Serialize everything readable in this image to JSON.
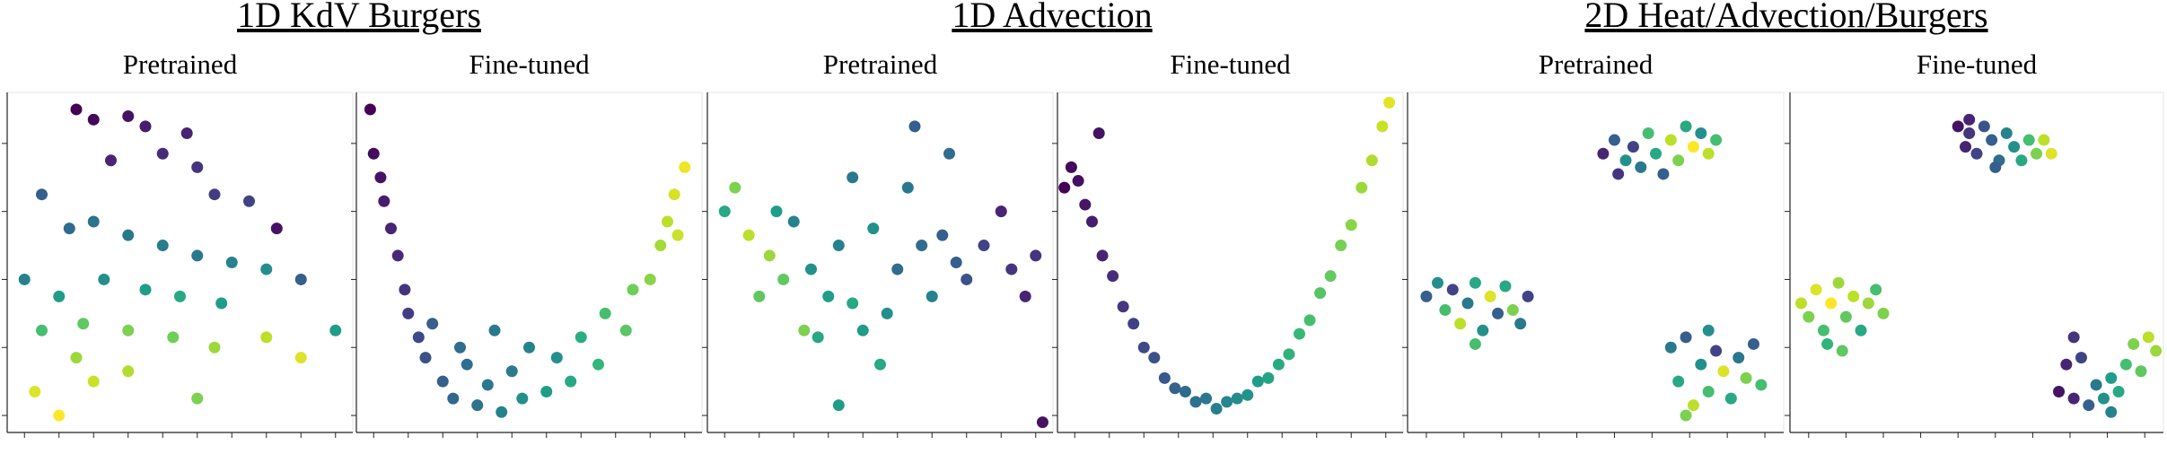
{
  "groups": [
    {
      "title": "1D KdV Burgers"
    },
    {
      "title": "1D Advection"
    },
    {
      "title": "2D Heat/Advection/Burgers"
    }
  ],
  "colormap": "viridis",
  "chart_data": [
    {
      "type": "scatter",
      "title": "Pretrained",
      "x": [
        20,
        25,
        35,
        40,
        30,
        45,
        52,
        55,
        60,
        70,
        78,
        10,
        18,
        25,
        35,
        45,
        55,
        65,
        75,
        85,
        5,
        15,
        28,
        40,
        50,
        62,
        95,
        10,
        22,
        35,
        48,
        60,
        75,
        8,
        15,
        25,
        35,
        55,
        85,
        20
      ],
      "values": [
        95,
        92,
        93,
        90,
        80,
        82,
        88,
        78,
        70,
        68,
        60,
        70,
        60,
        62,
        58,
        55,
        52,
        50,
        48,
        45,
        45,
        40,
        45,
        42,
        40,
        38,
        30,
        30,
        32,
        30,
        28,
        25,
        28,
        12,
        5,
        15,
        18,
        10,
        22,
        22
      ],
      "color_values": [
        0.0,
        0.02,
        0.05,
        0.08,
        0.1,
        0.12,
        0.1,
        0.15,
        0.18,
        0.2,
        0.05,
        0.3,
        0.35,
        0.38,
        0.4,
        0.42,
        0.4,
        0.45,
        0.5,
        0.3,
        0.45,
        0.55,
        0.5,
        0.55,
        0.6,
        0.55,
        0.55,
        0.7,
        0.75,
        0.8,
        0.78,
        0.85,
        0.9,
        0.95,
        1.0,
        0.92,
        0.88,
        0.8,
        0.95,
        0.85
      ],
      "xlim": [
        0,
        100
      ],
      "ylim": [
        0,
        100
      ],
      "xticks": [
        5,
        15,
        25,
        35,
        45,
        55,
        65,
        75,
        85,
        95
      ],
      "yticks": [
        5,
        25,
        45,
        65,
        85
      ]
    },
    {
      "type": "scatter",
      "title": "Fine-tuned",
      "x": [
        4,
        5,
        7,
        8,
        10,
        12,
        14,
        15,
        18,
        20,
        25,
        28,
        32,
        35,
        38,
        42,
        45,
        48,
        50,
        55,
        58,
        62,
        65,
        70,
        72,
        78,
        80,
        85,
        88,
        90,
        92,
        95,
        93,
        40,
        30,
        22
      ],
      "values": [
        95,
        82,
        75,
        68,
        60,
        52,
        42,
        35,
        28,
        22,
        15,
        10,
        20,
        8,
        14,
        6,
        18,
        10,
        25,
        12,
        22,
        15,
        28,
        20,
        35,
        30,
        42,
        45,
        55,
        62,
        70,
        78,
        58,
        30,
        25,
        32
      ],
      "color_values": [
        0,
        0.03,
        0.05,
        0.08,
        0.1,
        0.12,
        0.15,
        0.18,
        0.22,
        0.25,
        0.3,
        0.33,
        0.36,
        0.38,
        0.4,
        0.45,
        0.42,
        0.5,
        0.45,
        0.55,
        0.5,
        0.6,
        0.62,
        0.66,
        0.7,
        0.74,
        0.78,
        0.82,
        0.86,
        0.9,
        0.94,
        0.98,
        0.92,
        0.4,
        0.35,
        0.3
      ],
      "xlim": [
        0,
        100
      ],
      "ylim": [
        0,
        100
      ],
      "xticks": [
        5,
        15,
        25,
        35,
        45,
        55,
        65,
        75,
        85,
        95
      ],
      "yticks": [
        5,
        25,
        45,
        65,
        85
      ]
    },
    {
      "type": "scatter",
      "title": "Pretrained",
      "x": [
        5,
        8,
        12,
        18,
        22,
        25,
        30,
        35,
        38,
        42,
        45,
        48,
        50,
        38,
        55,
        58,
        60,
        62,
        65,
        68,
        70,
        72,
        75,
        80,
        85,
        88,
        92,
        95,
        97,
        28,
        15,
        32,
        42,
        52,
        20
      ],
      "values": [
        65,
        72,
        58,
        52,
        45,
        62,
        48,
        40,
        55,
        75,
        30,
        60,
        20,
        8,
        48,
        72,
        90,
        55,
        40,
        58,
        82,
        50,
        45,
        55,
        65,
        48,
        40,
        52,
        3,
        30,
        40,
        28,
        38,
        35,
        65
      ],
      "color_values": [
        0.6,
        0.8,
        0.9,
        0.85,
        0.75,
        0.45,
        0.5,
        0.55,
        0.45,
        0.4,
        0.55,
        0.5,
        0.6,
        0.55,
        0.35,
        0.4,
        0.3,
        0.35,
        0.45,
        0.3,
        0.35,
        0.3,
        0.25,
        0.2,
        0.1,
        0.15,
        0.1,
        0.15,
        0.05,
        0.8,
        0.75,
        0.6,
        0.6,
        0.5,
        0.55
      ],
      "xlim": [
        0,
        100
      ],
      "ylim": [
        0,
        100
      ],
      "xticks": [
        5,
        15,
        25,
        35,
        45,
        55,
        65,
        75,
        85,
        95
      ],
      "yticks": [
        5,
        25,
        45,
        65,
        85
      ]
    },
    {
      "type": "scatter",
      "title": "Fine-tuned",
      "x": [
        2,
        4,
        6,
        8,
        10,
        13,
        16,
        19,
        22,
        25,
        28,
        31,
        34,
        37,
        40,
        43,
        46,
        49,
        52,
        55,
        58,
        61,
        64,
        67,
        70,
        73,
        76,
        79,
        82,
        85,
        88,
        91,
        94,
        96,
        12
      ],
      "values": [
        72,
        78,
        74,
        67,
        62,
        52,
        46,
        37,
        32,
        25,
        22,
        16,
        13,
        12,
        9,
        10,
        7,
        9,
        10,
        11,
        15,
        16,
        20,
        23,
        29,
        33,
        41,
        46,
        55,
        61,
        72,
        80,
        90,
        97,
        88
      ],
      "color_values": [
        0.0,
        0.02,
        0.04,
        0.06,
        0.08,
        0.1,
        0.13,
        0.16,
        0.19,
        0.22,
        0.25,
        0.28,
        0.31,
        0.34,
        0.37,
        0.4,
        0.43,
        0.46,
        0.49,
        0.52,
        0.55,
        0.58,
        0.61,
        0.64,
        0.67,
        0.7,
        0.73,
        0.76,
        0.79,
        0.82,
        0.85,
        0.88,
        0.92,
        0.96,
        0.05
      ],
      "xlim": [
        0,
        100
      ],
      "ylim": [
        0,
        100
      ],
      "xticks": [
        5,
        15,
        25,
        35,
        45,
        55,
        65,
        75,
        85,
        95
      ],
      "yticks": [
        5,
        25,
        45,
        65,
        85
      ]
    },
    {
      "type": "scatter",
      "title": "Pretrained",
      "x": [
        52,
        55,
        58,
        60,
        62,
        64,
        66,
        68,
        70,
        72,
        74,
        76,
        78,
        80,
        82,
        56,
        5,
        8,
        10,
        12,
        14,
        16,
        18,
        20,
        22,
        24,
        26,
        28,
        30,
        32,
        18,
        70,
        72,
        74,
        76,
        78,
        80,
        82,
        84,
        86,
        88,
        90,
        92,
        94,
        80,
        74
      ],
      "values": [
        82,
        86,
        80,
        84,
        78,
        88,
        82,
        76,
        86,
        80,
        90,
        84,
        88,
        82,
        86,
        76,
        40,
        44,
        36,
        42,
        32,
        38,
        44,
        30,
        40,
        35,
        43,
        36,
        32,
        40,
        26,
        25,
        15,
        28,
        8,
        20,
        12,
        24,
        18,
        10,
        22,
        16,
        26,
        14,
        30,
        5
      ],
      "color_values": [
        0.1,
        0.3,
        0.5,
        0.2,
        0.4,
        0.7,
        0.6,
        0.3,
        0.9,
        0.8,
        0.6,
        1.0,
        0.5,
        0.9,
        0.7,
        0.15,
        0.3,
        0.5,
        0.7,
        0.2,
        0.9,
        0.4,
        0.6,
        0.5,
        0.95,
        0.3,
        0.6,
        0.8,
        0.4,
        0.2,
        0.7,
        0.4,
        0.6,
        0.3,
        0.9,
        0.5,
        0.7,
        0.2,
        0.95,
        0.6,
        0.4,
        0.8,
        0.3,
        0.7,
        0.5,
        0.8
      ],
      "xlim": [
        0,
        100
      ],
      "ylim": [
        0,
        100
      ],
      "xticks": [
        5,
        15,
        25,
        35,
        45,
        55,
        65,
        75,
        85,
        95
      ],
      "yticks": [
        5,
        25,
        45,
        65,
        85
      ]
    },
    {
      "type": "scatter",
      "title": "Fine-tuned",
      "x": [
        45,
        47,
        48,
        50,
        52,
        54,
        56,
        58,
        60,
        62,
        64,
        66,
        68,
        70,
        48,
        55,
        3,
        5,
        7,
        9,
        11,
        13,
        15,
        17,
        19,
        21,
        23,
        25,
        10,
        14,
        72,
        74,
        76,
        78,
        76,
        80,
        82,
        84,
        86,
        88,
        90,
        92,
        94,
        96,
        98,
        86
      ],
      "values": [
        90,
        84,
        88,
        82,
        90,
        86,
        80,
        88,
        84,
        80,
        86,
        82,
        86,
        82,
        92,
        78,
        38,
        34,
        42,
        30,
        38,
        44,
        34,
        40,
        30,
        38,
        42,
        35,
        26,
        24,
        12,
        20,
        28,
        22,
        10,
        8,
        14,
        10,
        16,
        12,
        20,
        26,
        18,
        28,
        24,
        6
      ],
      "color_values": [
        0.05,
        0.1,
        0.15,
        0.2,
        0.25,
        0.3,
        0.35,
        0.45,
        0.5,
        0.6,
        0.7,
        0.8,
        0.9,
        0.95,
        0.1,
        0.3,
        0.9,
        0.8,
        0.95,
        0.7,
        1.0,
        0.85,
        0.75,
        0.9,
        0.6,
        0.85,
        0.7,
        0.8,
        0.65,
        0.75,
        0.05,
        0.1,
        0.15,
        0.2,
        0.1,
        0.3,
        0.4,
        0.5,
        0.55,
        0.6,
        0.7,
        0.8,
        0.75,
        0.9,
        0.85,
        0.45
      ],
      "xlim": [
        0,
        100
      ],
      "ylim": [
        0,
        100
      ],
      "xticks": [
        5,
        15,
        25,
        35,
        45,
        55,
        65,
        75,
        85,
        95
      ],
      "yticks": [
        5,
        25,
        45,
        65,
        85
      ]
    }
  ]
}
